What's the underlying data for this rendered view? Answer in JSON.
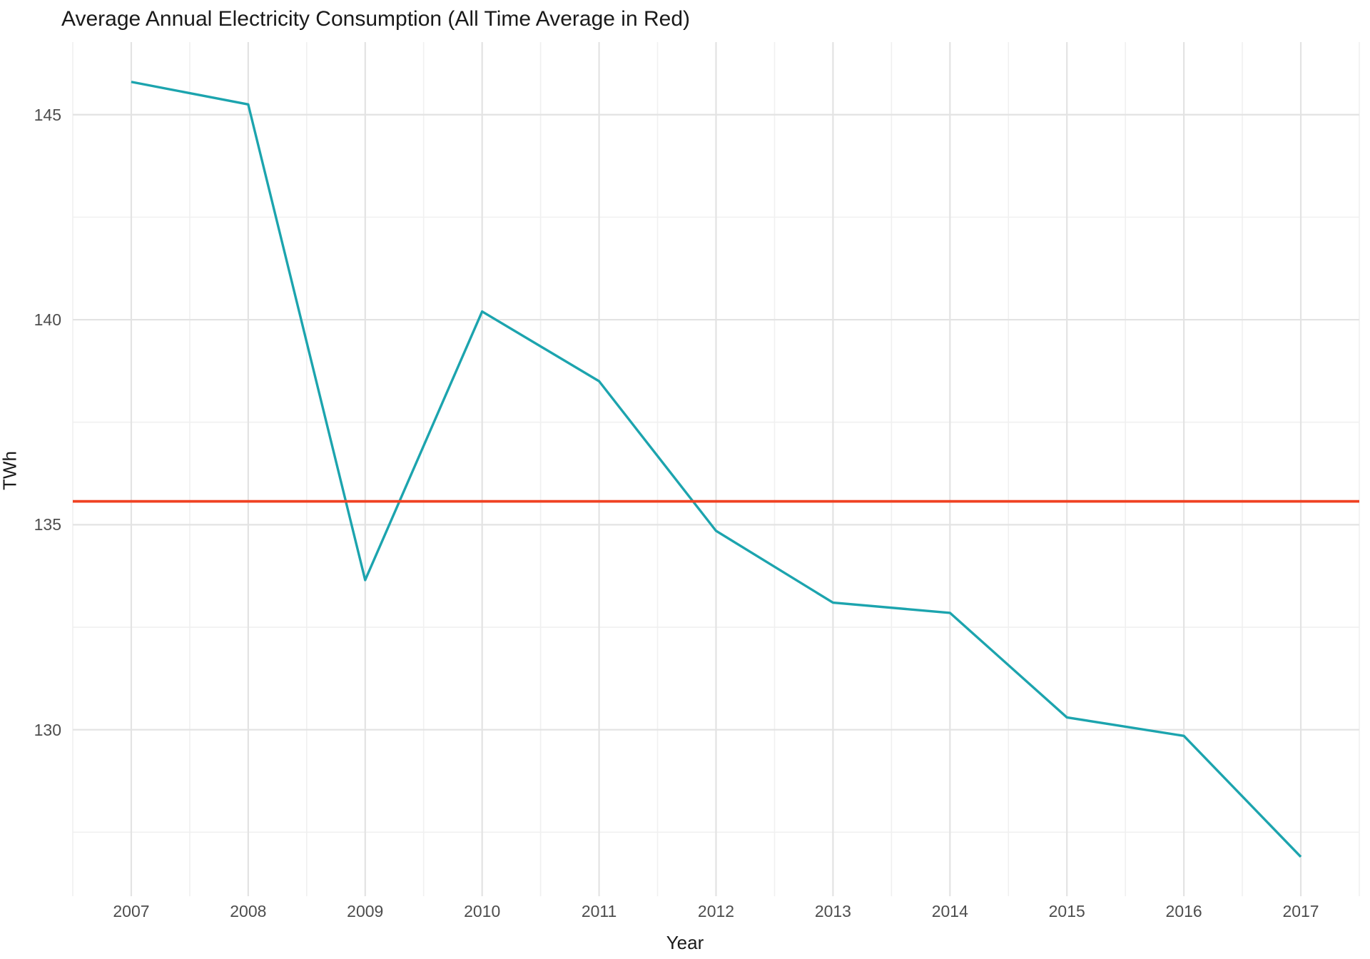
{
  "title": "Average Annual Electricity Consumption (All Time Average in Red)",
  "chart_data": {
    "type": "line",
    "title": "Average Annual Electricity Consumption (All Time Average in Red)",
    "xlabel": "Year",
    "ylabel": "TWh",
    "x": [
      2007,
      2008,
      2009,
      2010,
      2011,
      2012,
      2013,
      2014,
      2015,
      2016,
      2017
    ],
    "series": [
      {
        "name": "annual-electricity-consumption",
        "color": "#1CA4AE",
        "values": [
          145.8,
          145.25,
          133.65,
          140.2,
          138.5,
          134.85,
          133.1,
          132.85,
          130.3,
          129.85,
          126.9
        ]
      }
    ],
    "average_line": {
      "name": "all-time-average",
      "value": 135.57,
      "color": "#F04222"
    },
    "xlim": [
      2006.5,
      2017.5
    ],
    "ylim": [
      125.94,
      146.77
    ],
    "y_major_ticks": [
      145,
      140,
      135,
      130
    ],
    "y_minor_ticks": [
      142.5,
      137.5,
      132.5,
      127.5
    ],
    "x_minor_ticks": [
      2006.5,
      2007.5,
      2008.5,
      2009.5,
      2010.5,
      2011.5,
      2012.5,
      2013.5,
      2014.5,
      2015.5,
      2016.5,
      2017.5
    ],
    "grid": "major+minor",
    "legend": "none",
    "colors": {
      "background": "#FFFFFF",
      "grid_major": "#E3E3E3",
      "grid_minor": "#F0F0F0",
      "tick_text": "#4D4D4D",
      "axis_title_text": "#1A1A1A",
      "title_text": "#1A1A1A"
    }
  }
}
